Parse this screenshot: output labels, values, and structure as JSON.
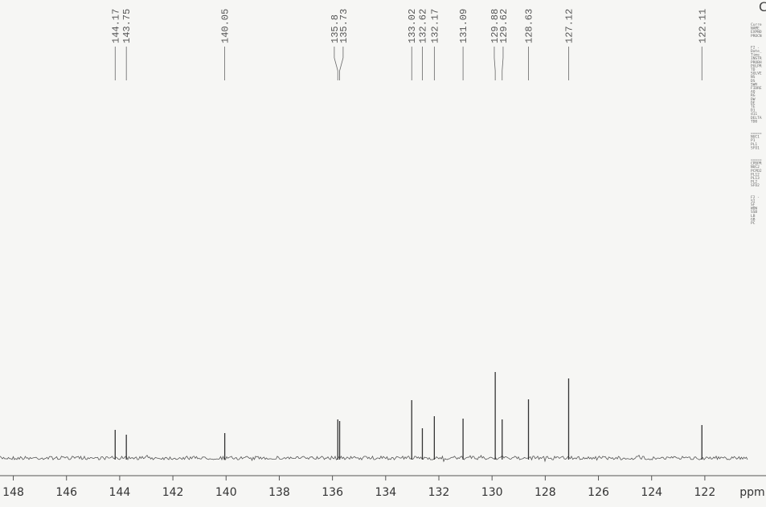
{
  "chart_data": {
    "type": "spectrum",
    "x": [
      144.17,
      143.75,
      140.05,
      135.8,
      135.73,
      133.02,
      132.62,
      132.17,
      131.09,
      129.88,
      129.62,
      128.63,
      127.12,
      122.11
    ],
    "values": [
      35,
      29,
      31,
      48,
      46,
      72,
      37,
      52,
      49,
      107,
      48,
      73,
      99,
      41
    ],
    "color": "#333333",
    "xlim": [
      148.5,
      119.7
    ],
    "xticks": [
      148,
      146,
      144,
      142,
      140,
      138,
      136,
      134,
      132,
      130,
      128,
      126,
      124,
      122
    ],
    "ylim": [
      0,
      120
    ],
    "x_label": "ppm",
    "corner_mark": "C",
    "parameters": [
      [
        "Curre",
        "NAME",
        "EXPNO",
        "PROCN"
      ],
      [
        "F2 -",
        "Date_",
        "Time",
        "INSTR",
        "PROBH",
        "PULPR",
        "TD",
        "SOLVE",
        "NS",
        "DS",
        "SWH",
        "FIDRE",
        "AQ",
        "RG",
        "DW",
        "DE",
        "TE",
        "D1",
        "d11",
        "DELTA",
        "TD0"
      ],
      [
        "=====",
        "NUC1",
        "P1",
        "PL1",
        "SFO1"
      ],
      [
        "=====",
        "CPDPR",
        "NUC2",
        "PCPD2",
        "PL12",
        "PL13",
        "PL2",
        "SFO2"
      ],
      [
        "F2 -",
        "SI",
        "SF",
        "WDW",
        "SSB",
        "LB",
        "GB",
        "PC"
      ]
    ]
  }
}
